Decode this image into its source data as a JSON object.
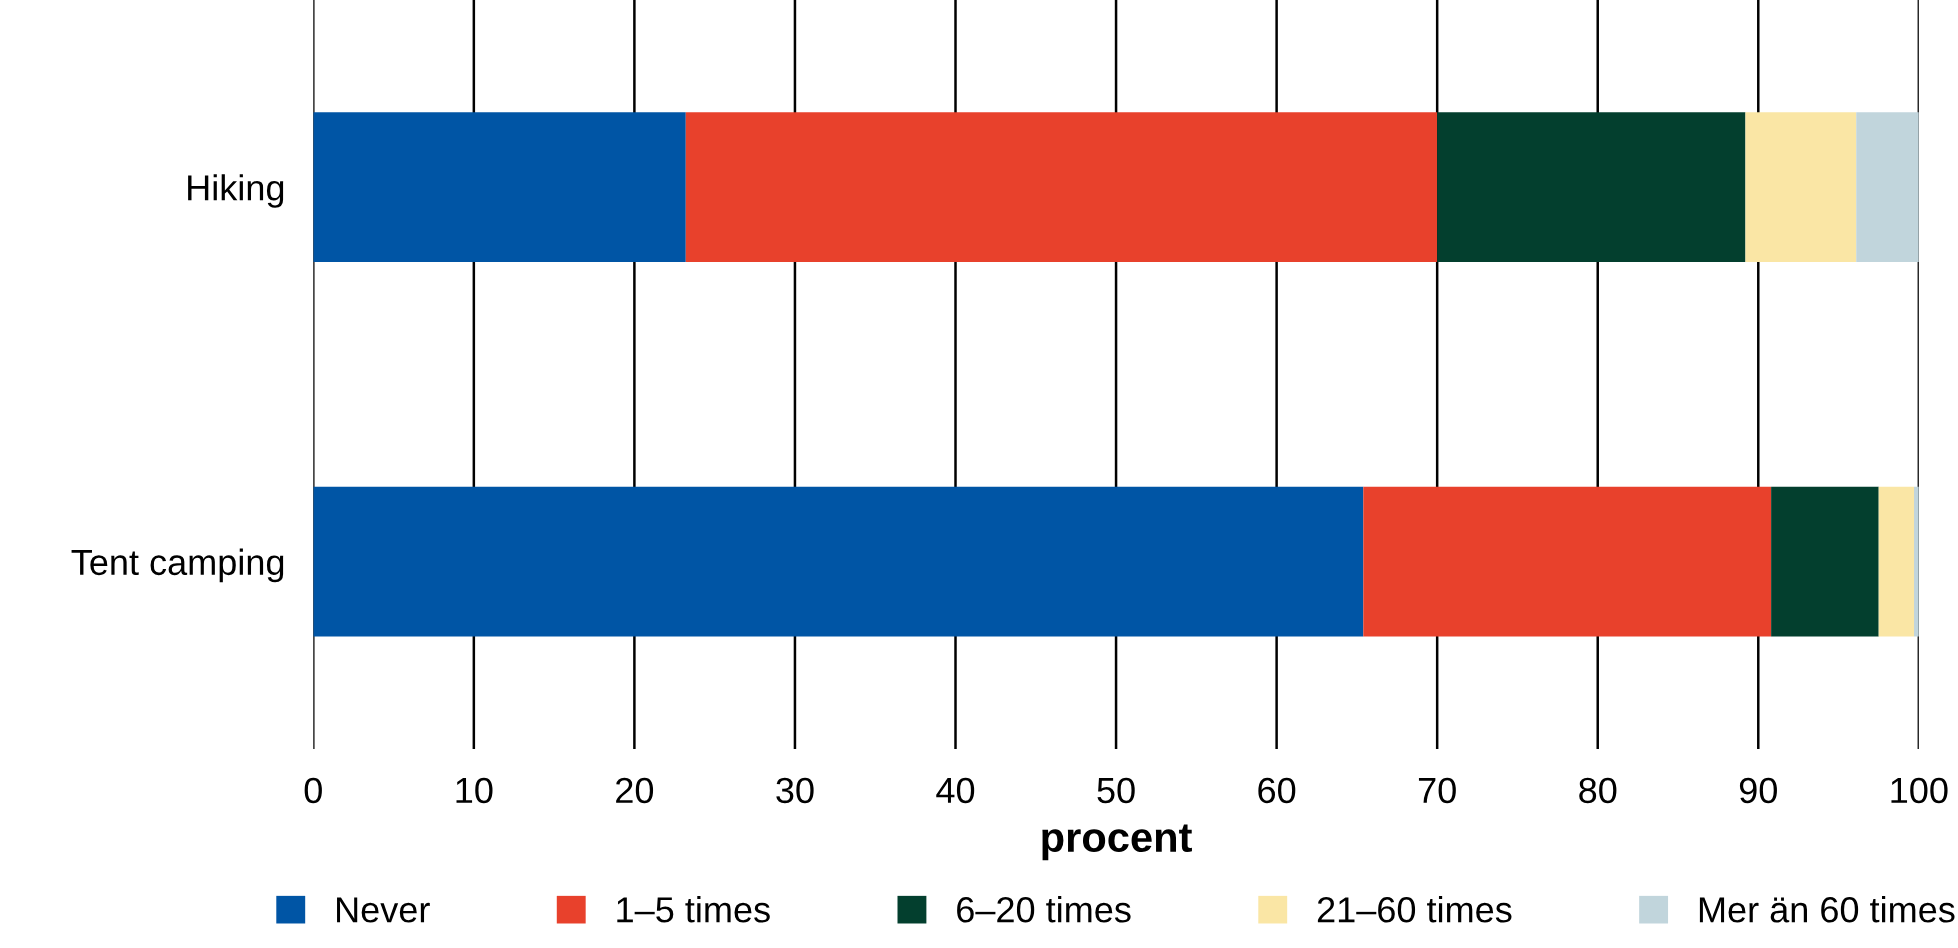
{
  "chart_data": {
    "type": "bar",
    "orientation": "horizontal",
    "stacked": true,
    "xlabel": "procent",
    "categories": [
      "Hiking",
      "Tent camping"
    ],
    "series": [
      {
        "name": "Never",
        "color": "#0055a5",
        "values": [
          23.2,
          65.4
        ]
      },
      {
        "name": "1–5 times",
        "color": "#e8412c",
        "values": [
          46.8,
          25.4
        ]
      },
      {
        "name": "6–20 times",
        "color": "#033f2e",
        "values": [
          19.2,
          6.7
        ]
      },
      {
        "name": "21–60 times",
        "color": "#fae6a5",
        "values": [
          6.9,
          2.2
        ]
      },
      {
        "name": "Mer än 60 times",
        "color": "#c1d5dc",
        "values": [
          3.9,
          0.3
        ]
      }
    ],
    "xlim": [
      0,
      100
    ],
    "xticks": [
      0,
      10,
      20,
      30,
      40,
      50,
      60,
      70,
      80,
      90,
      100
    ],
    "grid": "x",
    "legend": "bottom"
  }
}
